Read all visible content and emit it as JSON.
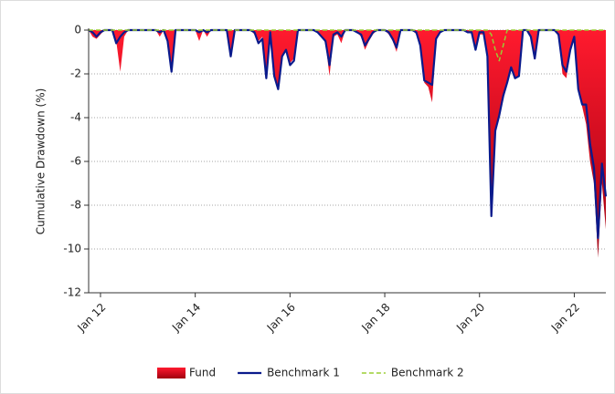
{
  "chart_data": {
    "type": "drawdown",
    "y_label": "Cumulative Drawdown (%)",
    "x": [
      "Oct 11",
      "Nov 11",
      "Dec 11",
      "Jan 12",
      "Feb 12",
      "Mar 12",
      "Apr 12",
      "May 12",
      "Jun 12",
      "Jul 12",
      "Aug 12",
      "Sep 12",
      "Oct 12",
      "Nov 12",
      "Dec 12",
      "Jan 13",
      "Feb 13",
      "Mar 13",
      "Apr 13",
      "May 13",
      "Jun 13",
      "Jul 13",
      "Aug 13",
      "Sep 13",
      "Oct 13",
      "Nov 13",
      "Dec 13",
      "Jan 14",
      "Feb 14",
      "Mar 14",
      "Apr 14",
      "May 14",
      "Jun 14",
      "Jul 14",
      "Aug 14",
      "Sep 14",
      "Oct 14",
      "Nov 14",
      "Dec 14",
      "Jan 15",
      "Feb 15",
      "Mar 15",
      "Apr 15",
      "May 15",
      "Jun 15",
      "Jul 15",
      "Aug 15",
      "Sep 15",
      "Oct 15",
      "Nov 15",
      "Dec 15",
      "Jan 16",
      "Feb 16",
      "Mar 16",
      "Apr 16",
      "May 16",
      "Jun 16",
      "Jul 16",
      "Aug 16",
      "Sep 16",
      "Oct 16",
      "Nov 16",
      "Dec 16",
      "Jan 17",
      "Feb 17",
      "Mar 17",
      "Apr 17",
      "May 17",
      "Jun 17",
      "Jul 17",
      "Aug 17",
      "Sep 17",
      "Oct 17",
      "Nov 17",
      "Dec 17",
      "Jan 18",
      "Feb 18",
      "Mar 18",
      "Apr 18",
      "May 18",
      "Jun 18",
      "Jul 18",
      "Aug 18",
      "Sep 18",
      "Oct 18",
      "Nov 18",
      "Dec 18",
      "Jan 19",
      "Feb 19",
      "Mar 19",
      "Apr 19",
      "May 19",
      "Jun 19",
      "Jul 19",
      "Aug 19",
      "Sep 19",
      "Oct 19",
      "Nov 19",
      "Dec 19",
      "Jan 20",
      "Feb 20",
      "Mar 20",
      "Apr 20",
      "May 20",
      "Jun 20",
      "Jul 20",
      "Aug 20",
      "Sep 20",
      "Oct 20",
      "Nov 20",
      "Dec 20",
      "Jan 21",
      "Feb 21",
      "Mar 21",
      "Apr 21",
      "May 21",
      "Jun 21",
      "Jul 21",
      "Aug 21",
      "Sep 21",
      "Oct 21",
      "Nov 21",
      "Dec 21",
      "Jan 22",
      "Feb 22",
      "Mar 22",
      "Apr 22",
      "May 22",
      "Jun 22",
      "Jul 22",
      "Aug 22",
      "Sep 22"
    ],
    "series": [
      {
        "name": "Fund",
        "color": "#e8001c",
        "style": "area",
        "values": [
          0,
          -0.3,
          -0.4,
          -0.2,
          0,
          0,
          0,
          -0.5,
          -1.9,
          -0.3,
          0,
          0,
          0,
          0,
          0,
          0,
          0,
          0,
          -0.3,
          0,
          -0.5,
          -1.8,
          0,
          0,
          0,
          0,
          0,
          0,
          -0.5,
          0,
          -0.3,
          0,
          0,
          0,
          0,
          0,
          -1.1,
          0,
          0,
          0,
          0,
          0,
          -0.2,
          -0.5,
          -0.3,
          -2.1,
          -0.2,
          -2.2,
          -2.6,
          -1.2,
          -0.9,
          -1.5,
          -1.3,
          0,
          0,
          0,
          0,
          0,
          -0.1,
          -0.3,
          -0.6,
          -2.1,
          -0.3,
          -0.2,
          -0.6,
          0,
          0,
          0,
          -0.1,
          -0.3,
          -0.9,
          -0.5,
          -0.2,
          0,
          0,
          0,
          -0.2,
          -0.5,
          -1.0,
          0,
          0,
          0,
          0,
          -0.2,
          -0.8,
          -2.4,
          -2.6,
          -3.3,
          -0.5,
          -0.1,
          0,
          0,
          0,
          0,
          0,
          0,
          -0.1,
          -0.1,
          -0.8,
          -0.2,
          -0.2,
          -1.0,
          -8.0,
          -4.5,
          -3.9,
          -3.2,
          -2.4,
          -1.7,
          -2.2,
          -2.1,
          0,
          0,
          -0.4,
          -1.3,
          0,
          0,
          0,
          0,
          0,
          -0.3,
          -2.0,
          -2.2,
          -1.0,
          -0.3,
          -2.8,
          -3.5,
          -4.3,
          -6.0,
          -7.0,
          -10.4,
          -7.0,
          -9.1
        ]
      },
      {
        "name": "Benchmark 1",
        "color": "#0a1a8c",
        "style": "line",
        "values": [
          0,
          -0.1,
          -0.3,
          -0.1,
          0,
          0,
          0,
          -0.6,
          -0.3,
          -0.1,
          0,
          0,
          0,
          0,
          0,
          0,
          0,
          0,
          -0.1,
          0,
          -0.5,
          -1.9,
          0,
          0,
          0,
          0,
          0,
          0,
          -0.1,
          0,
          -0.1,
          0,
          0,
          0,
          0,
          0,
          -1.2,
          0,
          0,
          0,
          0,
          0,
          -0.1,
          -0.6,
          -0.4,
          -2.2,
          -0.1,
          -2.1,
          -2.7,
          -1.2,
          -0.9,
          -1.6,
          -1.4,
          0,
          0,
          0,
          0,
          0,
          -0.1,
          -0.3,
          -0.5,
          -1.6,
          -0.2,
          -0.1,
          -0.3,
          0,
          0,
          0,
          -0.1,
          -0.2,
          -0.7,
          -0.4,
          -0.1,
          0,
          0,
          0,
          -0.1,
          -0.4,
          -0.8,
          0,
          0,
          0,
          0,
          -0.1,
          -0.7,
          -2.3,
          -2.4,
          -2.5,
          -0.4,
          -0.1,
          0,
          0,
          0,
          0,
          0,
          0,
          -0.1,
          -0.1,
          -0.9,
          -0.1,
          -0.1,
          -1.2,
          -8.5,
          -4.6,
          -3.9,
          -3.0,
          -2.4,
          -1.7,
          -2.2,
          -2.1,
          0,
          0,
          -0.3,
          -1.3,
          0,
          0,
          0,
          0,
          0,
          -0.2,
          -1.6,
          -1.9,
          -0.9,
          -0.3,
          -2.7,
          -3.4,
          -3.4,
          -5.2,
          -6.3,
          -9.5,
          -6.1,
          -7.6
        ]
      },
      {
        "name": "Benchmark 2",
        "color": "#9acd32",
        "style": "dashed",
        "values": [
          0,
          0,
          0,
          0,
          0,
          0,
          0,
          0,
          0,
          0,
          0,
          0,
          0,
          0,
          0,
          0,
          0,
          0,
          0,
          0,
          0,
          0,
          0,
          0,
          0,
          0,
          0,
          0,
          0,
          0,
          0,
          0,
          0,
          0,
          0,
          0,
          0,
          0,
          0,
          0,
          0,
          0,
          0,
          0,
          0,
          0,
          0,
          0,
          0,
          0,
          0,
          0,
          0,
          0,
          0,
          0,
          0,
          0,
          0,
          0,
          0,
          0,
          0,
          0,
          0,
          0,
          0,
          0,
          0,
          0,
          0,
          0,
          0,
          0,
          0,
          0,
          0,
          0,
          0,
          0,
          0,
          0,
          0,
          0,
          0,
          0,
          0,
          0,
          0,
          0,
          0,
          0,
          0,
          0,
          0,
          0,
          0,
          0,
          0,
          0,
          0,
          0,
          -0.2,
          -0.9,
          -1.4,
          -0.7,
          0,
          0,
          0,
          0,
          0,
          0,
          0,
          0,
          0,
          0,
          0,
          0,
          0,
          0,
          0,
          0,
          0,
          0,
          0,
          0,
          0,
          0,
          0,
          0,
          0,
          0
        ]
      }
    ],
    "xlim": [
      "Oct 11",
      "Sep 22"
    ],
    "xticks": [
      "Jan 12",
      "Jan 14",
      "Jan 16",
      "Jan 18",
      "Jan 20",
      "Jan 22"
    ],
    "ylim": [
      -12,
      0
    ],
    "yticks": [
      0,
      -2,
      -4,
      -6,
      -8,
      -10,
      -12
    ],
    "grid": true,
    "legend": "bottom"
  }
}
